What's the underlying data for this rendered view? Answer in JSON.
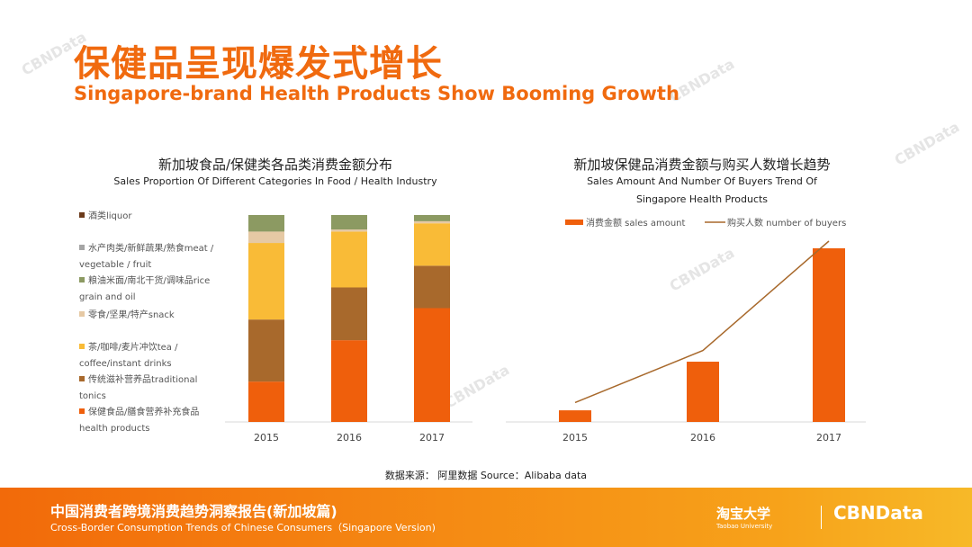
{
  "title_cn": "保健品呈现爆发式增长",
  "title_en": "Singapore-brand Health Products Show Booming Growth",
  "watermark": "CBNData",
  "source": "数据来源： 阿里数据  Source：Alibaba data",
  "footer": {
    "title_cn": "中国消费者跨境消费趋势洞察报告(新加坡篇)",
    "title_en": "Cross-Border Consumption Trends of Chinese Consumers（Singapore Version)",
    "logo_taobao": "淘宝大学",
    "logo_taobao_sub": "Taobao University",
    "logo_cbn": "CBNData"
  },
  "chart_data": [
    {
      "type": "bar",
      "stacked": true,
      "title": "新加坡食品/保健类各品类消费金额分布",
      "subtitle": "Sales Proportion Of Different Categories In Food / Health Industry",
      "categories": [
        "2015",
        "2016",
        "2017"
      ],
      "ylim": [
        0,
        100
      ],
      "unit": "%",
      "legend": "left",
      "series": [
        {
          "name": "保健食品/膳食营养补充食品health products",
          "color": "#ef5f0c",
          "values": [
            19.5,
            39.5,
            55
          ]
        },
        {
          "name": "传统滋补营养品traditional tonics",
          "color": "#a8692c",
          "values": [
            30,
            25.5,
            20.5
          ]
        },
        {
          "name": "茶/咖啡/麦片冲饮tea / coffee/instant drinks",
          "color": "#f9bb37",
          "values": [
            37,
            27,
            20.5
          ]
        },
        {
          "name": "零食/坚果/特产snack",
          "color": "#e6c9a4",
          "values": [
            5.5,
            1,
            1
          ]
        },
        {
          "name": "粮油米面/南北干货/调味品rice grain and oil",
          "color": "#8c9a62",
          "values": [
            8,
            7,
            3
          ]
        },
        {
          "name": "水产肉类/新鲜蔬果/熟食meat / vegetable / fruit",
          "color": "#a5a5a5",
          "values": [
            0,
            0,
            0
          ]
        },
        {
          "name": "酒类liquor",
          "color": "#6b3a1a",
          "values": [
            0,
            0,
            0
          ]
        }
      ]
    },
    {
      "type": "bar+line",
      "title": "新加坡保健品消费金额与购买人数增长趋势",
      "subtitle": "Sales Amount And Number Of Buyers Trend Of Singapore Health Products",
      "categories": [
        "2015",
        "2016",
        "2017"
      ],
      "legend": "top",
      "series": [
        {
          "name": "消费金额 sales amount",
          "kind": "bar",
          "color": "#ef5f0c",
          "values": [
            6.7,
            34.7,
            100
          ]
        },
        {
          "name": "购买人数 number of buyers",
          "kind": "line",
          "color": "#a8692c",
          "values": [
            7,
            37,
            100
          ]
        }
      ]
    }
  ]
}
